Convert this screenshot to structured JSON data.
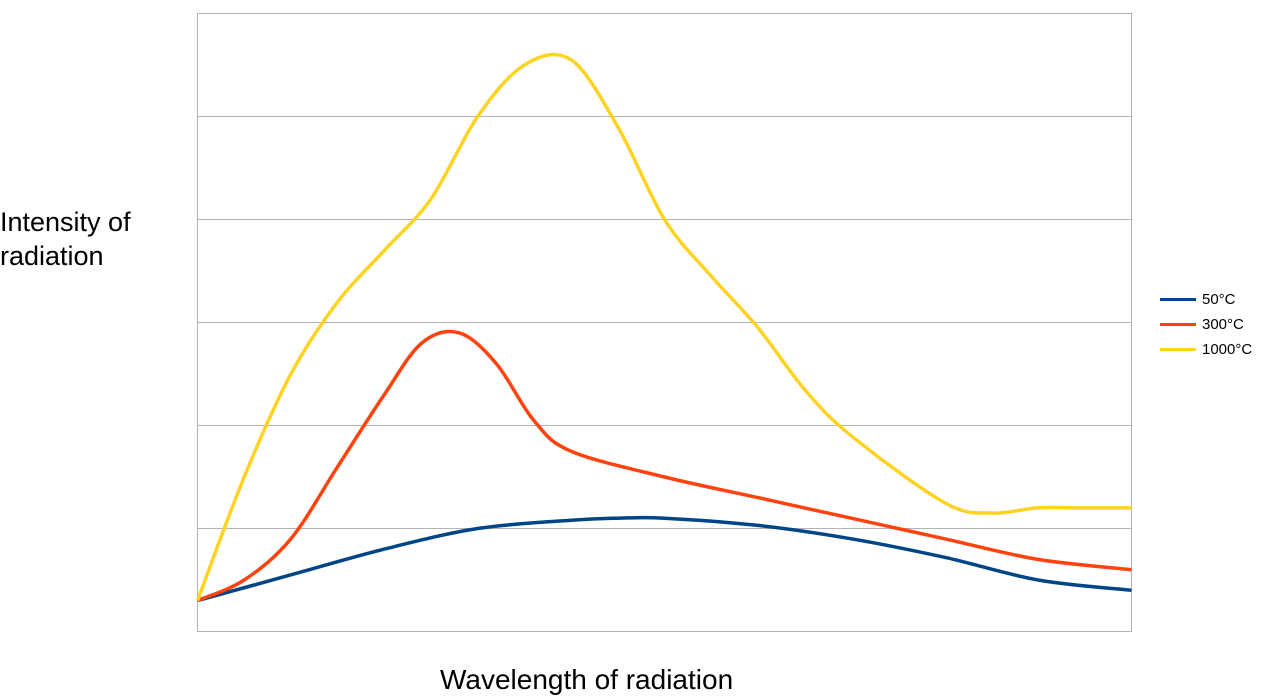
{
  "chart_data": {
    "type": "line",
    "title": "",
    "xlabel": "Wavelength of radiation",
    "ylabel": "Intensity of radiation",
    "xlim": [
      0,
      10
    ],
    "ylim": [
      0,
      6
    ],
    "x_tick_labels": false,
    "y_tick_labels": false,
    "grid": "horizontal",
    "legend_position": "right",
    "series": [
      {
        "name": "50°C",
        "color": "#004586",
        "points": [
          [
            0,
            0.3
          ],
          [
            1,
            0.55
          ],
          [
            2,
            0.8
          ],
          [
            3,
            1.0
          ],
          [
            4,
            1.08
          ],
          [
            4.5,
            1.1
          ],
          [
            5,
            1.1
          ],
          [
            6,
            1.03
          ],
          [
            7,
            0.9
          ],
          [
            8,
            0.72
          ],
          [
            9,
            0.5
          ],
          [
            10,
            0.4
          ]
        ]
      },
      {
        "name": "300°C",
        "color": "#ff420e",
        "points": [
          [
            0,
            0.3
          ],
          [
            0.5,
            0.5
          ],
          [
            1,
            0.9
          ],
          [
            1.5,
            1.6
          ],
          [
            2,
            2.3
          ],
          [
            2.4,
            2.8
          ],
          [
            2.8,
            2.9
          ],
          [
            3.2,
            2.6
          ],
          [
            3.6,
            2.05
          ],
          [
            4,
            1.75
          ],
          [
            5,
            1.5
          ],
          [
            6,
            1.3
          ],
          [
            7,
            1.1
          ],
          [
            8,
            0.9
          ],
          [
            9,
            0.7
          ],
          [
            10,
            0.6
          ]
        ]
      },
      {
        "name": "1000°C",
        "color": "#ffd320",
        "points": [
          [
            0,
            0.3
          ],
          [
            0.5,
            1.5
          ],
          [
            1,
            2.5
          ],
          [
            1.5,
            3.2
          ],
          [
            2,
            3.7
          ],
          [
            2.5,
            4.2
          ],
          [
            3,
            5.0
          ],
          [
            3.5,
            5.5
          ],
          [
            4,
            5.55
          ],
          [
            4.5,
            4.9
          ],
          [
            5,
            4.0
          ],
          [
            5.5,
            3.45
          ],
          [
            6,
            2.95
          ],
          [
            6.5,
            2.35
          ],
          [
            7,
            1.9
          ],
          [
            8,
            1.25
          ],
          [
            8.5,
            1.15
          ],
          [
            9,
            1.2
          ],
          [
            9.5,
            1.2
          ],
          [
            10,
            1.2
          ]
        ]
      }
    ]
  }
}
